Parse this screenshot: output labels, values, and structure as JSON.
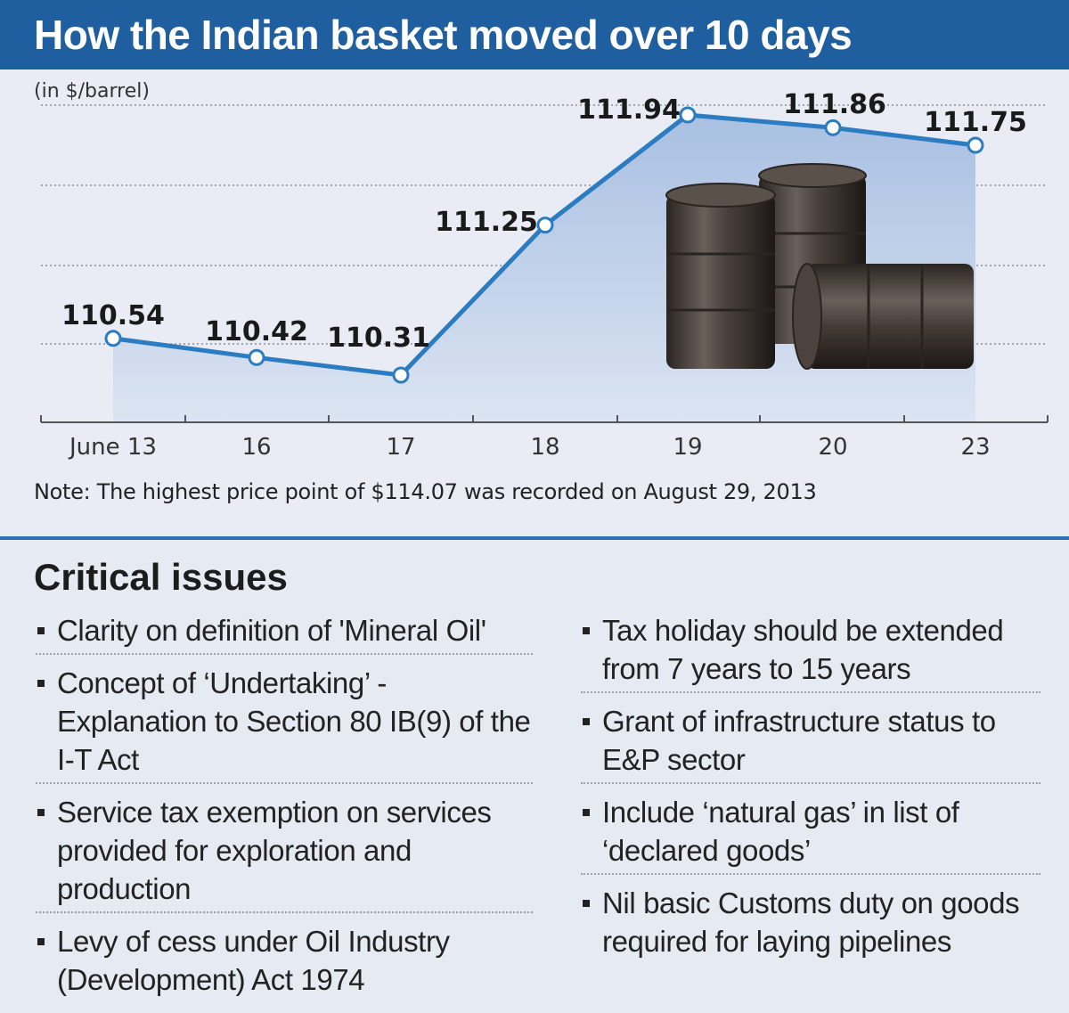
{
  "title": "How the Indian basket moved over 10 days",
  "unit_label": "(in $/barrel)",
  "note": "Note: The highest price point of $114.07 was recorded on August 29, 2013",
  "chart_data": {
    "type": "area",
    "title": "How the Indian basket moved over 10 days",
    "ylabel": "(in $/barrel)",
    "xlabel": "",
    "categories": [
      "June 13",
      "16",
      "17",
      "18",
      "19",
      "20",
      "23"
    ],
    "values": [
      110.54,
      110.42,
      110.31,
      111.25,
      111.94,
      111.86,
      111.75
    ],
    "value_labels": [
      "110.54",
      "110.42",
      "110.31",
      "111.25",
      "111.94",
      "111.86",
      "111.75"
    ],
    "ylim": [
      110.0,
      112.0
    ],
    "grid": true,
    "line_color": "#2b7cc0",
    "fill_color": "#b8cbe6"
  },
  "issues": {
    "heading": "Critical issues",
    "left": [
      "Clarity on definition of 'Mineral Oil'",
      "Concept of ‘Undertaking’ - Explanation to Section 80 IB(9) of the I-T Act",
      "Service tax exemption on services provided for exploration and production",
      "Levy of cess under Oil Industry (Development) Act 1974"
    ],
    "right": [
      "Tax holiday should be extended from 7 years to 15 years",
      "Grant of infrastructure status to E&P sector",
      "Include ‘natural gas’ in list of ‘declared goods’",
      "Nil basic Customs duty on goods required for laying pipelines"
    ]
  },
  "colors": {
    "title_bar": "#1f5f9f",
    "divider": "#2a72b5",
    "background": "#e9ecf4"
  },
  "illustration": "oil-barrels-icon"
}
